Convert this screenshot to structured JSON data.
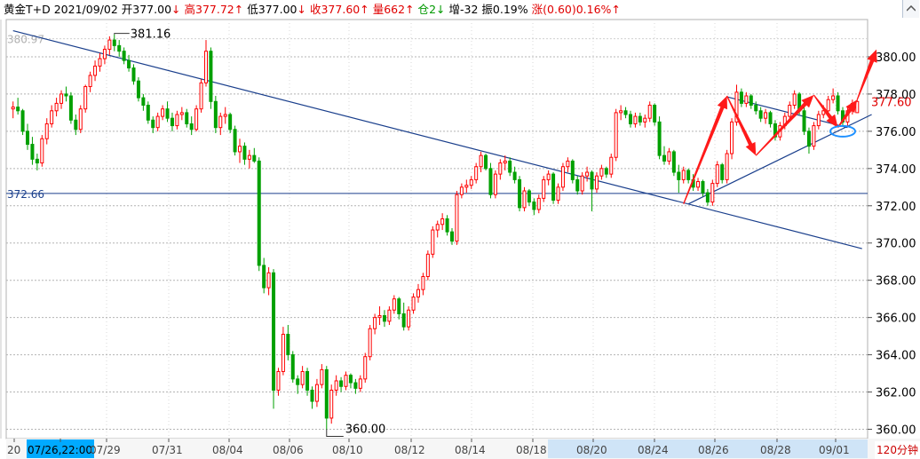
{
  "header": {
    "name": "黄金T+D",
    "date": "2021/09/02",
    "open_label": "开",
    "open": "377.00",
    "open_arrow": "↓",
    "high_label": "高",
    "high": "377.72",
    "high_arrow": "↑",
    "low_label": "低",
    "low": "377.00",
    "low_arrow": "↓",
    "close_label": "收",
    "close": "377.60",
    "close_arrow": "↑",
    "volume_label": "量",
    "volume": "662",
    "volume_arrow": "↑",
    "position_label": "仓",
    "position": "2",
    "position_arrow": "↓",
    "increase_label": "增",
    "increase": "-32",
    "amplitude_label": "振",
    "amplitude": "0.19%",
    "change_label": "涨",
    "change": "(0.60)0.16%",
    "change_arrow": "↑"
  },
  "period": "120分钟",
  "colors": {
    "up": "#ff0000",
    "down": "#00a000",
    "trend": "#1a3f8c",
    "ellipse": "#1e90ff",
    "arrow": "#ff1a1a"
  },
  "chart_data": {
    "type": "candlestick",
    "y_ticks": [
      "380.00",
      "378.00",
      "376.00",
      "374.00",
      "372.00",
      "370.00",
      "368.00",
      "366.00",
      "364.00",
      "362.00",
      "360.00"
    ],
    "x_labels": [
      "20",
      "07/26,22:00",
      "07/29",
      "07/31",
      "08/04",
      "08/06",
      "08/10",
      "08/12",
      "08/14",
      "08/18",
      "08/20",
      "08/24",
      "08/26",
      "08/28",
      "09/01"
    ],
    "ylim": [
      359.5,
      382.0
    ],
    "annotations": {
      "high_label": "381.16",
      "low_label": "360.00",
      "top_value": "380.97",
      "hline_label": "372.66",
      "last_label": "377.60"
    },
    "horizontal_line": 372.66,
    "last_price": 377.6,
    "trendlines": [
      {
        "name": "upper-channel",
        "from": [
          0,
          381.4
        ],
        "to": [
          176,
          369.7
        ]
      },
      {
        "name": "august-end-upper",
        "from": [
          148,
          377.85
        ],
        "to": [
          173,
          376.2
        ]
      },
      {
        "name": "august-end-support",
        "from": [
          140,
          372.1
        ],
        "to": [
          178,
          376.9
        ]
      }
    ],
    "candles": [
      [
        377.2,
        377.6,
        376.7,
        377.3
      ],
      [
        377.3,
        377.8,
        376.9,
        377.1
      ],
      [
        377.1,
        377.2,
        375.8,
        376.0
      ],
      [
        376.0,
        376.4,
        375.0,
        375.3
      ],
      [
        375.3,
        375.7,
        374.2,
        374.5
      ],
      [
        374.5,
        374.8,
        373.9,
        374.3
      ],
      [
        374.3,
        375.8,
        374.1,
        375.6
      ],
      [
        375.6,
        376.7,
        375.3,
        376.4
      ],
      [
        376.4,
        377.4,
        376.2,
        377.1
      ],
      [
        377.1,
        377.8,
        376.8,
        377.5
      ],
      [
        377.5,
        378.2,
        377.2,
        378.0
      ],
      [
        378.0,
        378.4,
        377.6,
        377.9
      ],
      [
        377.9,
        378.1,
        376.4,
        376.6
      ],
      [
        376.6,
        376.9,
        375.8,
        376.1
      ],
      [
        376.1,
        377.4,
        375.9,
        377.2
      ],
      [
        377.2,
        378.5,
        377.0,
        378.4
      ],
      [
        378.4,
        379.2,
        378.1,
        379.0
      ],
      [
        379.0,
        379.8,
        378.7,
        379.5
      ],
      [
        379.5,
        380.2,
        379.2,
        379.9
      ],
      [
        379.9,
        380.6,
        379.6,
        380.4
      ],
      [
        380.4,
        381.1,
        380.1,
        380.9
      ],
      [
        380.9,
        381.2,
        380.3,
        380.6
      ],
      [
        380.6,
        380.9,
        380.0,
        380.3
      ],
      [
        380.3,
        380.5,
        379.6,
        379.8
      ],
      [
        379.8,
        380.1,
        379.2,
        379.4
      ],
      [
        379.4,
        379.6,
        378.5,
        378.7
      ],
      [
        378.7,
        378.9,
        377.6,
        377.8
      ],
      [
        377.8,
        378.0,
        377.1,
        377.4
      ],
      [
        377.4,
        377.6,
        376.4,
        376.6
      ],
      [
        376.6,
        376.8,
        375.9,
        376.2
      ],
      [
        376.2,
        377.0,
        376.0,
        376.8
      ],
      [
        376.8,
        377.4,
        376.6,
        377.2
      ],
      [
        377.2,
        377.6,
        376.5,
        376.7
      ],
      [
        376.7,
        377.0,
        376.0,
        376.3
      ],
      [
        376.3,
        377.1,
        376.1,
        376.9
      ],
      [
        376.9,
        377.3,
        376.6,
        377.0
      ],
      [
        377.0,
        377.2,
        376.2,
        376.4
      ],
      [
        376.4,
        376.8,
        375.8,
        376.1
      ],
      [
        376.1,
        377.4,
        376.0,
        377.2
      ],
      [
        377.2,
        378.8,
        377.0,
        378.6
      ],
      [
        378.6,
        380.9,
        378.4,
        380.3
      ],
      [
        380.3,
        380.5,
        377.2,
        377.6
      ],
      [
        377.6,
        377.9,
        375.9,
        376.2
      ],
      [
        376.2,
        377.0,
        375.8,
        376.8
      ],
      [
        376.8,
        377.3,
        376.4,
        376.9
      ],
      [
        376.9,
        377.0,
        375.9,
        376.1
      ],
      [
        376.1,
        376.3,
        374.7,
        374.9
      ],
      [
        374.9,
        375.6,
        374.3,
        375.2
      ],
      [
        375.2,
        375.4,
        374.2,
        374.5
      ],
      [
        374.5,
        375.0,
        374.0,
        374.7
      ],
      [
        374.7,
        375.1,
        374.3,
        374.4
      ],
      [
        374.4,
        374.6,
        368.5,
        368.8
      ],
      [
        368.8,
        369.2,
        367.3,
        367.6
      ],
      [
        367.6,
        368.7,
        367.2,
        368.4
      ],
      [
        368.4,
        368.6,
        361.1,
        362.1
      ],
      [
        362.1,
        363.3,
        361.8,
        363.1
      ],
      [
        363.1,
        365.5,
        362.9,
        365.1
      ],
      [
        365.1,
        365.6,
        363.7,
        364.0
      ],
      [
        364.0,
        364.2,
        362.5,
        362.7
      ],
      [
        362.7,
        362.9,
        361.9,
        362.4
      ],
      [
        362.4,
        363.4,
        362.2,
        363.1
      ],
      [
        363.1,
        363.3,
        361.8,
        362.1
      ],
      [
        362.1,
        362.3,
        361.1,
        361.5
      ],
      [
        361.5,
        362.7,
        361.2,
        362.4
      ],
      [
        362.4,
        363.5,
        362.2,
        363.2
      ],
      [
        363.2,
        363.4,
        360.0,
        360.6
      ],
      [
        360.6,
        362.4,
        360.3,
        362.1
      ],
      [
        362.1,
        362.9,
        361.8,
        362.6
      ],
      [
        362.6,
        362.8,
        362.0,
        362.3
      ],
      [
        362.3,
        363.1,
        362.1,
        362.9
      ],
      [
        362.9,
        363.0,
        362.2,
        362.5
      ],
      [
        362.5,
        362.7,
        361.9,
        362.2
      ],
      [
        362.2,
        362.9,
        362.0,
        362.7
      ],
      [
        362.7,
        364.1,
        362.5,
        363.9
      ],
      [
        363.9,
        365.6,
        363.7,
        365.4
      ],
      [
        365.4,
        366.2,
        365.1,
        366.0
      ],
      [
        366.0,
        366.6,
        365.6,
        366.1
      ],
      [
        366.1,
        366.4,
        365.5,
        365.8
      ],
      [
        365.8,
        366.6,
        365.6,
        366.4
      ],
      [
        366.4,
        367.2,
        366.2,
        367.0
      ],
      [
        367.0,
        367.1,
        365.9,
        366.2
      ],
      [
        366.2,
        366.8,
        365.3,
        365.5
      ],
      [
        365.5,
        366.6,
        365.3,
        366.4
      ],
      [
        366.4,
        367.3,
        366.2,
        367.1
      ],
      [
        367.1,
        367.8,
        366.8,
        367.5
      ],
      [
        367.5,
        368.4,
        367.2,
        368.2
      ],
      [
        368.2,
        369.6,
        368.0,
        369.4
      ],
      [
        369.4,
        370.9,
        369.2,
        370.7
      ],
      [
        370.7,
        371.2,
        370.3,
        371.0
      ],
      [
        371.0,
        371.6,
        370.7,
        371.3
      ],
      [
        371.3,
        371.5,
        370.4,
        370.6
      ],
      [
        370.6,
        370.8,
        369.9,
        370.1
      ],
      [
        370.1,
        372.8,
        369.9,
        372.6
      ],
      [
        372.6,
        373.2,
        372.4,
        373.0
      ],
      [
        373.0,
        373.4,
        372.7,
        373.1
      ],
      [
        373.1,
        373.6,
        372.9,
        373.4
      ],
      [
        373.4,
        374.3,
        373.2,
        374.1
      ],
      [
        374.1,
        374.9,
        373.8,
        374.7
      ],
      [
        374.7,
        374.8,
        373.9,
        374.0
      ],
      [
        374.0,
        374.3,
        372.4,
        372.6
      ],
      [
        372.6,
        373.9,
        372.4,
        373.7
      ],
      [
        373.7,
        374.5,
        373.4,
        374.3
      ],
      [
        374.3,
        374.7,
        373.9,
        374.4
      ],
      [
        374.4,
        374.6,
        373.6,
        373.8
      ],
      [
        373.8,
        374.1,
        373.2,
        373.4
      ],
      [
        373.4,
        373.6,
        371.7,
        371.9
      ],
      [
        371.9,
        373.0,
        371.7,
        372.8
      ],
      [
        372.8,
        372.9,
        372.0,
        372.2
      ],
      [
        372.2,
        372.4,
        371.5,
        371.8
      ],
      [
        371.8,
        372.6,
        371.6,
        372.4
      ],
      [
        372.4,
        373.6,
        372.2,
        373.4
      ],
      [
        373.4,
        373.9,
        373.1,
        373.7
      ],
      [
        373.7,
        373.8,
        372.1,
        372.3
      ],
      [
        372.3,
        373.2,
        372.1,
        373.0
      ],
      [
        373.0,
        374.3,
        372.8,
        374.1
      ],
      [
        374.1,
        374.6,
        373.8,
        374.4
      ],
      [
        374.4,
        374.5,
        373.2,
        373.4
      ],
      [
        373.4,
        373.6,
        372.6,
        372.8
      ],
      [
        372.8,
        373.8,
        372.6,
        373.6
      ],
      [
        373.6,
        374.1,
        373.3,
        373.8
      ],
      [
        373.8,
        373.9,
        371.7,
        372.9
      ],
      [
        372.9,
        373.8,
        372.7,
        373.6
      ],
      [
        373.6,
        374.2,
        373.4,
        374.0
      ],
      [
        374.0,
        374.1,
        373.5,
        373.7
      ],
      [
        373.7,
        374.8,
        373.5,
        374.6
      ],
      [
        374.6,
        377.2,
        374.4,
        377.0
      ],
      [
        377.0,
        377.4,
        376.6,
        377.1
      ],
      [
        377.1,
        377.3,
        376.7,
        376.9
      ],
      [
        376.9,
        377.1,
        376.2,
        376.4
      ],
      [
        376.4,
        377.0,
        376.2,
        376.8
      ],
      [
        376.8,
        377.0,
        376.3,
        376.5
      ],
      [
        376.5,
        376.9,
        376.2,
        376.7
      ],
      [
        376.7,
        377.6,
        376.5,
        377.4
      ],
      [
        377.4,
        377.5,
        376.3,
        376.5
      ],
      [
        376.5,
        376.8,
        374.5,
        374.7
      ],
      [
        374.7,
        375.2,
        374.2,
        374.4
      ],
      [
        374.4,
        375.1,
        374.2,
        374.9
      ],
      [
        374.9,
        375.0,
        373.6,
        373.8
      ],
      [
        373.8,
        374.2,
        372.7,
        373.4
      ],
      [
        373.4,
        374.1,
        373.2,
        373.9
      ],
      [
        373.9,
        374.0,
        373.2,
        373.4
      ],
      [
        373.4,
        373.7,
        372.8,
        373.0
      ],
      [
        373.0,
        373.5,
        372.8,
        373.3
      ],
      [
        373.3,
        373.4,
        372.5,
        372.7
      ],
      [
        372.7,
        372.9,
        372.0,
        372.2
      ],
      [
        372.2,
        373.4,
        372.0,
        373.2
      ],
      [
        373.2,
        374.4,
        373.0,
        374.2
      ],
      [
        374.2,
        374.3,
        373.2,
        373.4
      ],
      [
        373.4,
        375.0,
        373.2,
        374.8
      ],
      [
        374.8,
        376.7,
        374.5,
        376.5
      ],
      [
        376.5,
        378.5,
        376.3,
        378.1
      ],
      [
        378.1,
        378.3,
        377.3,
        377.5
      ],
      [
        377.5,
        378.1,
        377.3,
        377.9
      ],
      [
        377.9,
        378.0,
        377.2,
        377.4
      ],
      [
        377.4,
        377.6,
        376.9,
        377.1
      ],
      [
        377.1,
        377.3,
        376.5,
        376.7
      ],
      [
        376.7,
        377.2,
        376.4,
        377.0
      ],
      [
        377.0,
        377.1,
        376.2,
        376.4
      ],
      [
        376.4,
        376.6,
        375.5,
        375.7
      ],
      [
        375.7,
        376.5,
        375.5,
        376.3
      ],
      [
        376.3,
        377.0,
        376.1,
        376.8
      ],
      [
        376.8,
        377.6,
        376.6,
        377.4
      ],
      [
        377.4,
        378.2,
        377.2,
        378.0
      ],
      [
        378.0,
        378.1,
        376.9,
        377.1
      ],
      [
        377.1,
        377.3,
        375.8,
        376.0
      ],
      [
        376.0,
        376.2,
        374.8,
        375.2
      ],
      [
        375.2,
        376.5,
        375.0,
        376.3
      ],
      [
        376.3,
        377.1,
        376.1,
        376.9
      ],
      [
        376.9,
        377.4,
        376.7,
        377.1
      ],
      [
        377.1,
        377.9,
        376.9,
        377.7
      ],
      [
        377.7,
        378.3,
        377.5,
        377.9
      ],
      [
        377.9,
        378.1,
        376.9,
        377.1
      ],
      [
        377.1,
        377.3,
        376.3,
        376.5
      ],
      [
        376.5,
        377.3,
        376.3,
        377.1
      ],
      [
        377.1,
        377.7,
        376.9,
        377.5
      ],
      [
        377.0,
        377.72,
        377.0,
        377.6
      ]
    ]
  }
}
